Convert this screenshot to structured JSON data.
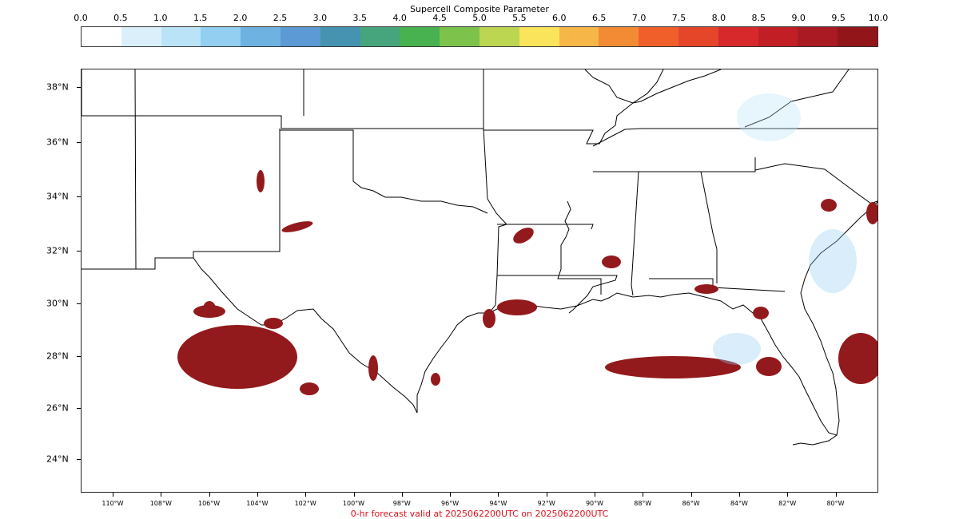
{
  "colorbar": {
    "title": "Supercell Composite Parameter",
    "tick_labels": [
      "0.0",
      "0.5",
      "1.0",
      "1.5",
      "2.0",
      "2.5",
      "3.0",
      "3.5",
      "4.0",
      "4.5",
      "5.0",
      "5.5",
      "6.0",
      "6.5",
      "7.0",
      "7.5",
      "8.0",
      "8.5",
      "9.0",
      "9.5",
      "10.0"
    ],
    "colors": [
      "#ffffff",
      "#dbeffb",
      "#bbe3f7",
      "#93cff1",
      "#6eb2e1",
      "#5b9ad5",
      "#4593b0",
      "#46a57c",
      "#47b24f",
      "#7dc34b",
      "#bdd652",
      "#f9e45b",
      "#f7b748",
      "#f38b34",
      "#f05f2a",
      "#e5462a",
      "#d7292b",
      "#c11e25",
      "#aa1a23",
      "#921519"
    ]
  },
  "map": {
    "lon_labels": [
      "110°W",
      "108°W",
      "106°W",
      "104°W",
      "102°W",
      "100°W",
      "98°W",
      "96°W",
      "94°W",
      "92°W",
      "90°W",
      "88°W",
      "86°W",
      "84°W",
      "82°W",
      "80°W"
    ],
    "lat_labels": [
      "24°N",
      "26°N",
      "28°N",
      "30°N",
      "32°N",
      "34°N",
      "36°N",
      "38°N"
    ],
    "highlight_color": "#931a1c",
    "outline_color": "#000000"
  },
  "footer": {
    "text": "0-hr forecast valid at 2025062200UTC on 2025062200UTC",
    "color": "#e0101a"
  }
}
